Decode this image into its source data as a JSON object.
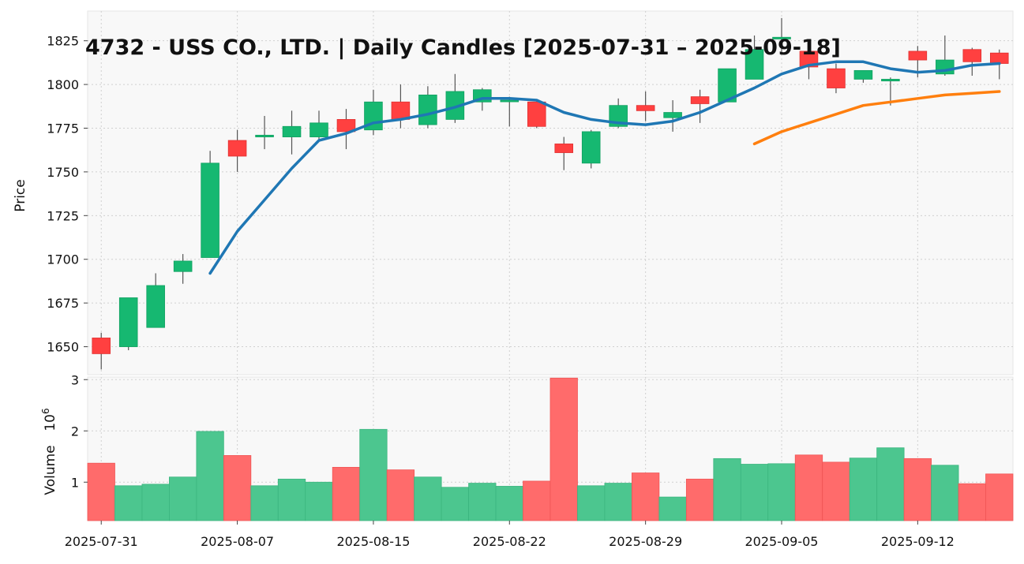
{
  "chart_data": {
    "type": "candlestick",
    "title": "4732 - USS CO., LTD. | Daily Candles [2025-07-31 – 2025-09-18]",
    "price_axis": {
      "label": "Price",
      "ylim": [
        1634,
        1842
      ],
      "ticks": [
        1650,
        1675,
        1700,
        1725,
        1750,
        1775,
        1800,
        1825
      ]
    },
    "volume_axis": {
      "label": "Volume",
      "exponent_label": "10",
      "exponent": "6",
      "ylim": [
        0.25,
        3.05
      ],
      "ticks": [
        1,
        2,
        3
      ]
    },
    "x_tick_labels": [
      {
        "index": 0,
        "label": "2025-07-31"
      },
      {
        "index": 5,
        "label": "2025-08-07"
      },
      {
        "index": 10,
        "label": "2025-08-15"
      },
      {
        "index": 15,
        "label": "2025-08-22"
      },
      {
        "index": 20,
        "label": "2025-08-29"
      },
      {
        "index": 25,
        "label": "2025-09-05"
      },
      {
        "index": 30,
        "label": "2025-09-12"
      }
    ],
    "candles": [
      {
        "open": 1655,
        "high": 1658,
        "low": 1637,
        "close": 1646,
        "volume": 1.37
      },
      {
        "open": 1650,
        "high": 1678,
        "low": 1648,
        "close": 1678,
        "volume": 0.93
      },
      {
        "open": 1661,
        "high": 1692,
        "low": 1661,
        "close": 1685,
        "volume": 0.96
      },
      {
        "open": 1693,
        "high": 1703,
        "low": 1686,
        "close": 1699,
        "volume": 1.1
      },
      {
        "open": 1701,
        "high": 1762,
        "low": 1701,
        "close": 1755,
        "volume": 1.99
      },
      {
        "open": 1768,
        "high": 1774,
        "low": 1750,
        "close": 1759,
        "volume": 1.52
      },
      {
        "open": 1770,
        "high": 1782,
        "low": 1763,
        "close": 1771,
        "volume": 0.93
      },
      {
        "open": 1770,
        "high": 1785,
        "low": 1760,
        "close": 1776,
        "volume": 1.06
      },
      {
        "open": 1770,
        "high": 1785,
        "low": 1768,
        "close": 1778,
        "volume": 1.0
      },
      {
        "open": 1780,
        "high": 1786,
        "low": 1763,
        "close": 1773,
        "volume": 1.29
      },
      {
        "open": 1774,
        "high": 1797,
        "low": 1771,
        "close": 1790,
        "volume": 2.03
      },
      {
        "open": 1790,
        "high": 1800,
        "low": 1775,
        "close": 1780,
        "volume": 1.24
      },
      {
        "open": 1777,
        "high": 1799,
        "low": 1775,
        "close": 1794,
        "volume": 1.1
      },
      {
        "open": 1780,
        "high": 1806,
        "low": 1778,
        "close": 1796,
        "volume": 0.9
      },
      {
        "open": 1790,
        "high": 1798,
        "low": 1785,
        "close": 1797,
        "volume": 0.98
      },
      {
        "open": 1791,
        "high": 1793,
        "low": 1776,
        "close": 1791,
        "volume": 0.92
      },
      {
        "open": 1790,
        "high": 1791,
        "low": 1775,
        "close": 1776,
        "volume": 1.02
      },
      {
        "open": 1766,
        "high": 1770,
        "low": 1751,
        "close": 1761,
        "volume": 3.03
      },
      {
        "open": 1755,
        "high": 1774,
        "low": 1752,
        "close": 1773,
        "volume": 0.93
      },
      {
        "open": 1776,
        "high": 1792,
        "low": 1775,
        "close": 1788,
        "volume": 0.98
      },
      {
        "open": 1788,
        "high": 1796,
        "low": 1779,
        "close": 1785,
        "volume": 1.18
      },
      {
        "open": 1781,
        "high": 1791,
        "low": 1773,
        "close": 1784,
        "volume": 0.71
      },
      {
        "open": 1793,
        "high": 1797,
        "low": 1778,
        "close": 1789,
        "volume": 1.06
      },
      {
        "open": 1790,
        "high": 1809,
        "low": 1790,
        "close": 1809,
        "volume": 1.46
      },
      {
        "open": 1803,
        "high": 1828,
        "low": 1803,
        "close": 1820,
        "volume": 1.35
      },
      {
        "open": 1826,
        "high": 1838,
        "low": 1817,
        "close": 1827,
        "volume": 1.36
      },
      {
        "open": 1819,
        "high": 1822,
        "low": 1803,
        "close": 1810,
        "volume": 1.53
      },
      {
        "open": 1809,
        "high": 1812,
        "low": 1795,
        "close": 1798,
        "volume": 1.39
      },
      {
        "open": 1803,
        "high": 1808,
        "low": 1801,
        "close": 1808,
        "volume": 1.47
      },
      {
        "open": 1802,
        "high": 1804,
        "low": 1788,
        "close": 1803,
        "volume": 1.67
      },
      {
        "open": 1819,
        "high": 1822,
        "low": 1804,
        "close": 1814,
        "volume": 1.46
      },
      {
        "open": 1806,
        "high": 1828,
        "low": 1805,
        "close": 1814,
        "volume": 1.33
      },
      {
        "open": 1820,
        "high": 1821,
        "low": 1805,
        "close": 1813,
        "volume": 0.97
      },
      {
        "open": 1818,
        "high": 1820,
        "low": 1803,
        "close": 1812,
        "volume": 1.16
      }
    ],
    "moving_averages": [
      {
        "color": "#1f77b4",
        "start_index": 4,
        "values": [
          1692,
          1716,
          1734,
          1752,
          1768,
          1772,
          1778,
          1780,
          1783,
          1787,
          1792,
          1792,
          1791,
          1784,
          1780,
          1778,
          1777,
          1779,
          1784,
          1791,
          1798,
          1806,
          1811,
          1813,
          1813,
          1809,
          1807,
          1808,
          1811,
          1812
        ]
      },
      {
        "color": "#ff7f0e",
        "start_index": 24,
        "values": [
          1766,
          1773,
          1778,
          1783,
          1788,
          1790,
          1792,
          1794,
          1795,
          1796
        ]
      }
    ],
    "colors": {
      "up": "#16b871",
      "down": "#ff4040",
      "vol_up": "#4cc68f",
      "vol_down": "#ff6b6b",
      "panel_bg": "#f8f8f8",
      "grid": "#d0d0d0"
    }
  }
}
